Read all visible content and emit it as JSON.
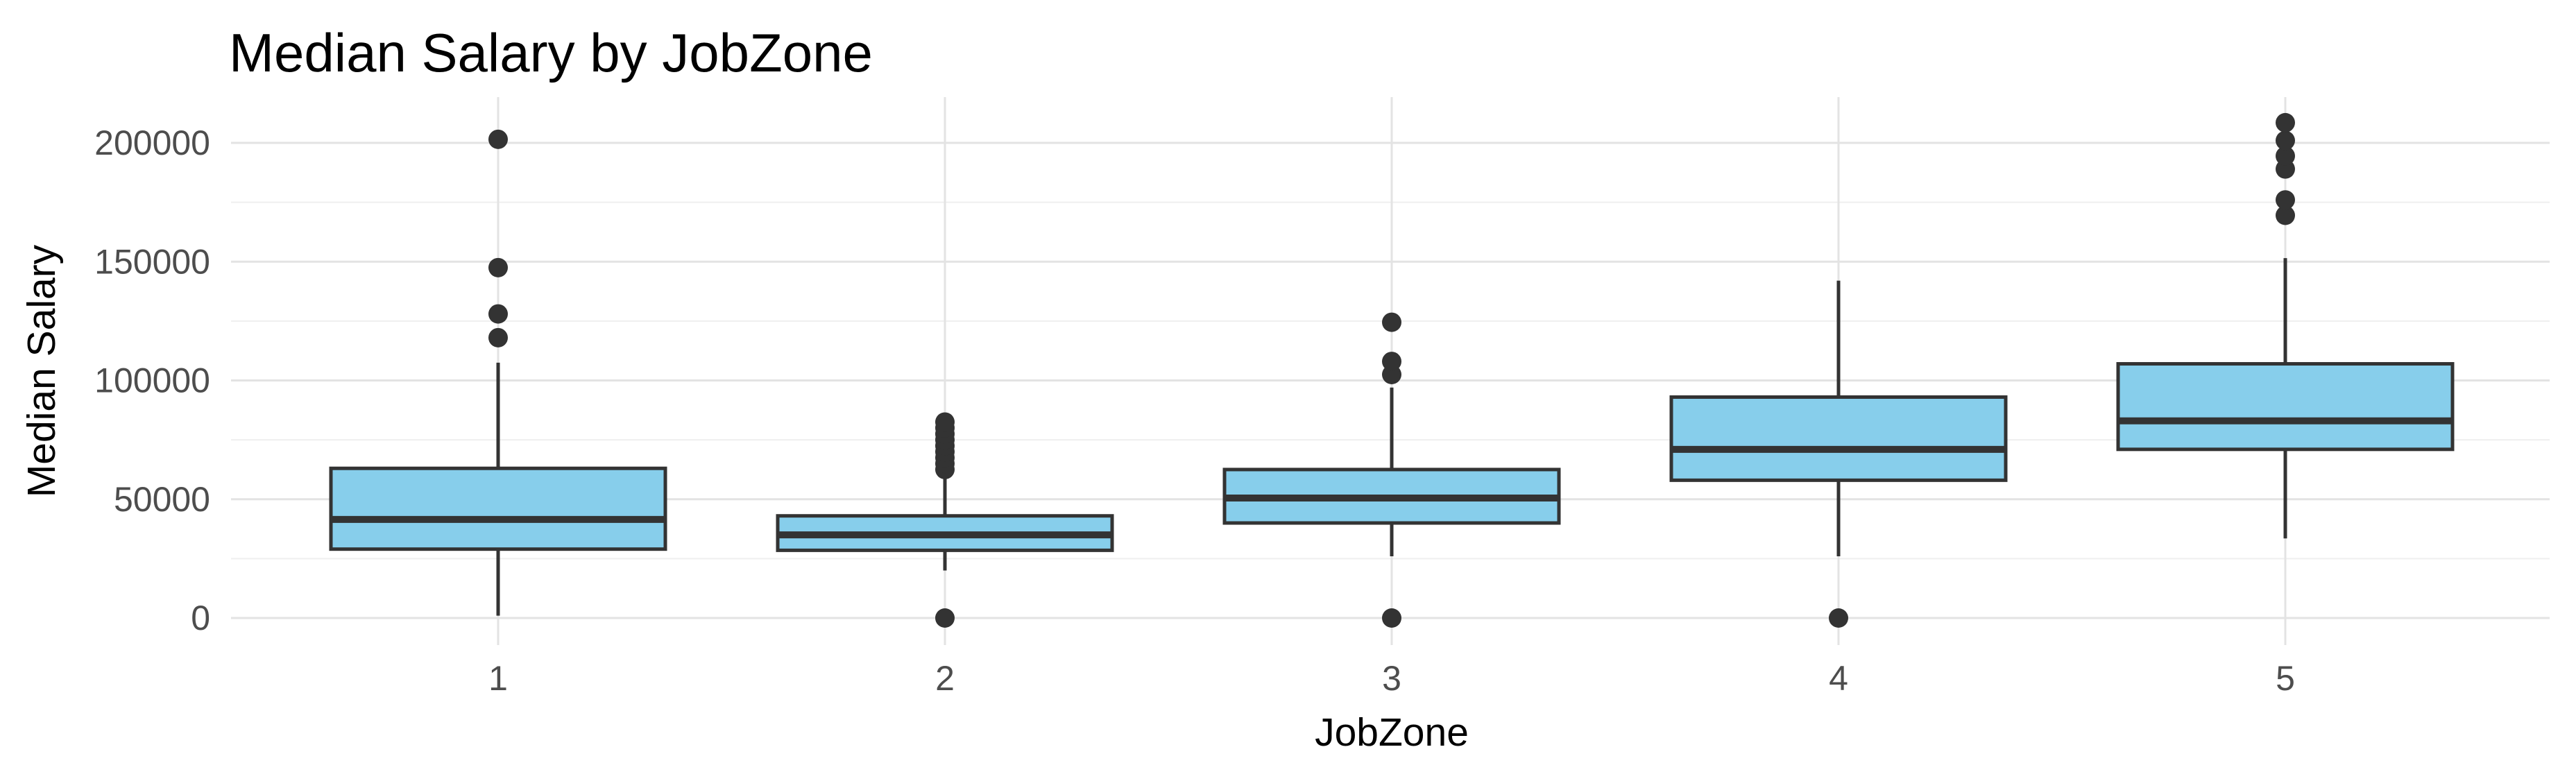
{
  "chart_data": {
    "type": "boxplot",
    "title": "Median Salary by JobZone",
    "xlabel": "JobZone",
    "ylabel": "Median Salary",
    "categories": [
      "1",
      "2",
      "3",
      "4",
      "5"
    ],
    "y_ticks": [
      {
        "value": 0,
        "label": "0"
      },
      {
        "value": 50000,
        "label": "50000"
      },
      {
        "value": 100000,
        "label": "100000"
      },
      {
        "value": 150000,
        "label": "150000"
      },
      {
        "value": 200000,
        "label": "200000"
      }
    ],
    "y_minor_ticks": [
      25000,
      75000,
      125000,
      175000
    ],
    "ylim": [
      -11400,
      219300
    ],
    "grid": {
      "horizontal": "major+minor",
      "vertical": "major-only",
      "background": "#ffffff"
    },
    "legend": "none",
    "series": [
      {
        "category": "1",
        "min": 1000,
        "q1": 29000,
        "median": 41500,
        "q3": 63000,
        "max": 107500,
        "outliers": [
          118000,
          128000,
          147500,
          201500
        ]
      },
      {
        "category": "2",
        "min": 20000,
        "q1": 28500,
        "median": 35000,
        "q3": 43000,
        "max": 61500,
        "outliers": [
          0,
          62500,
          65000,
          67500,
          70000,
          72500,
          75000,
          77500,
          80000,
          82500
        ]
      },
      {
        "category": "3",
        "min": 26000,
        "q1": 40000,
        "median": 50500,
        "q3": 62500,
        "max": 97000,
        "outliers": [
          0,
          102500,
          108000,
          124500
        ]
      },
      {
        "category": "4",
        "min": 26000,
        "q1": 58000,
        "median": 71000,
        "q3": 93000,
        "max": 142000,
        "outliers": [
          0
        ]
      },
      {
        "category": "5",
        "min": 33500,
        "q1": 71000,
        "median": 83000,
        "q3": 107000,
        "max": 151500,
        "outliers": [
          169500,
          176000,
          189000,
          194500,
          201000,
          208500
        ]
      }
    ],
    "style": {
      "box_fill": "#87CEEB",
      "box_stroke": "#333333",
      "median_color": "#333333",
      "whisker_color": "#333333",
      "outlier_color": "#333333",
      "grid_major_color": "#E3E3E3",
      "grid_minor_color": "#EFEFEF",
      "tick_label_color": "#4D4D4D",
      "title_color": "#000000"
    }
  }
}
